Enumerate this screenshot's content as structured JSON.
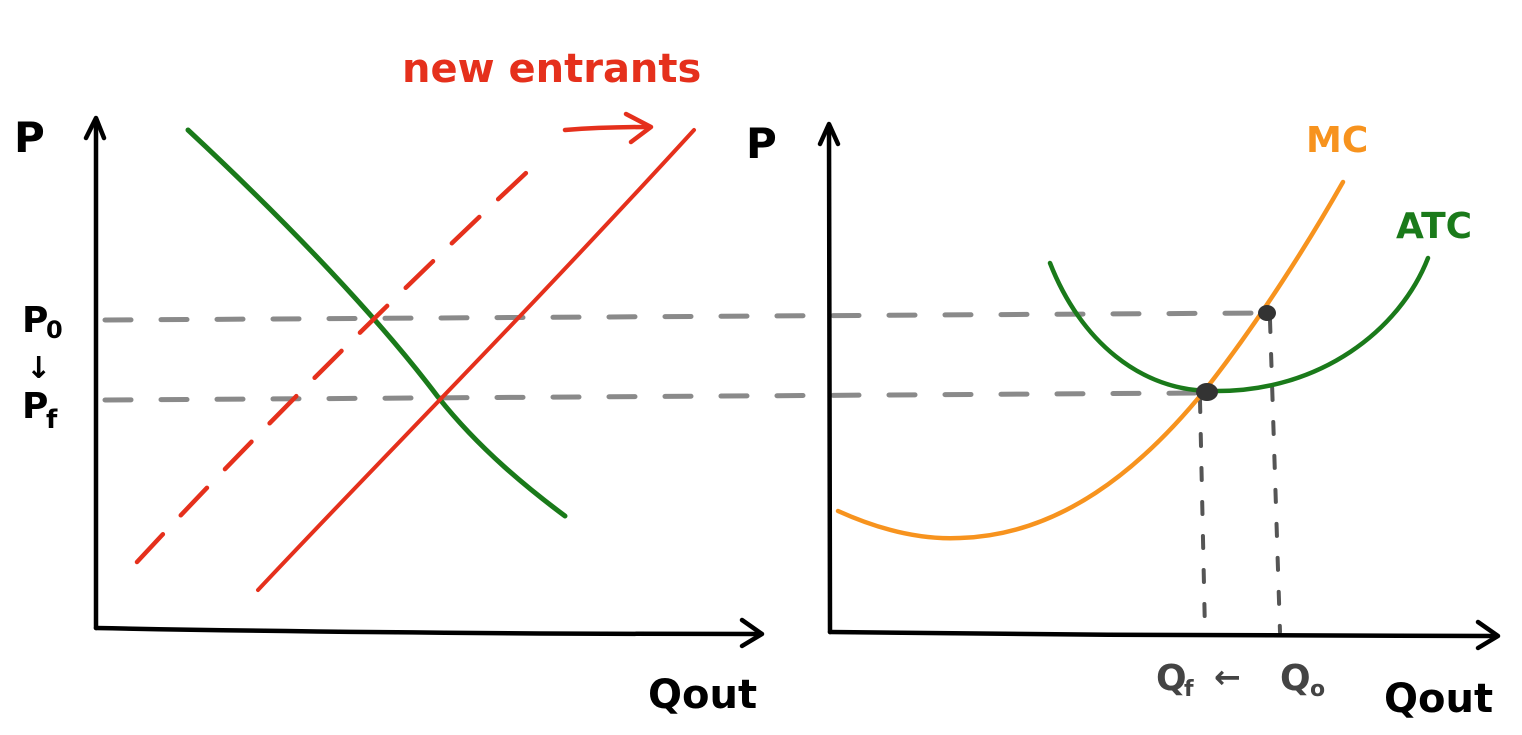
{
  "colors": {
    "axis": "#000000",
    "demand": "#1a7a1a",
    "supply": "#e5301c",
    "mc": "#f7931e",
    "atc": "#1a7a1a",
    "guide": "#8a8a8a",
    "annotation": "#e5301c"
  },
  "market": {
    "y_axis_label": "P",
    "x_axis_label": "Qout",
    "price_initial": "P",
    "price_initial_sub": "0",
    "price_arrow": "↓",
    "price_final": "P",
    "price_final_sub": "f",
    "annotation": "new entrants"
  },
  "firm": {
    "y_axis_label": "P",
    "x_axis_label": "Qout",
    "mc_label": "MC",
    "atc_label": "ATC",
    "q_final": "Q",
    "q_final_sub": "f",
    "q_arrow": "←",
    "q_initial": "Q",
    "q_initial_sub": "o"
  }
}
